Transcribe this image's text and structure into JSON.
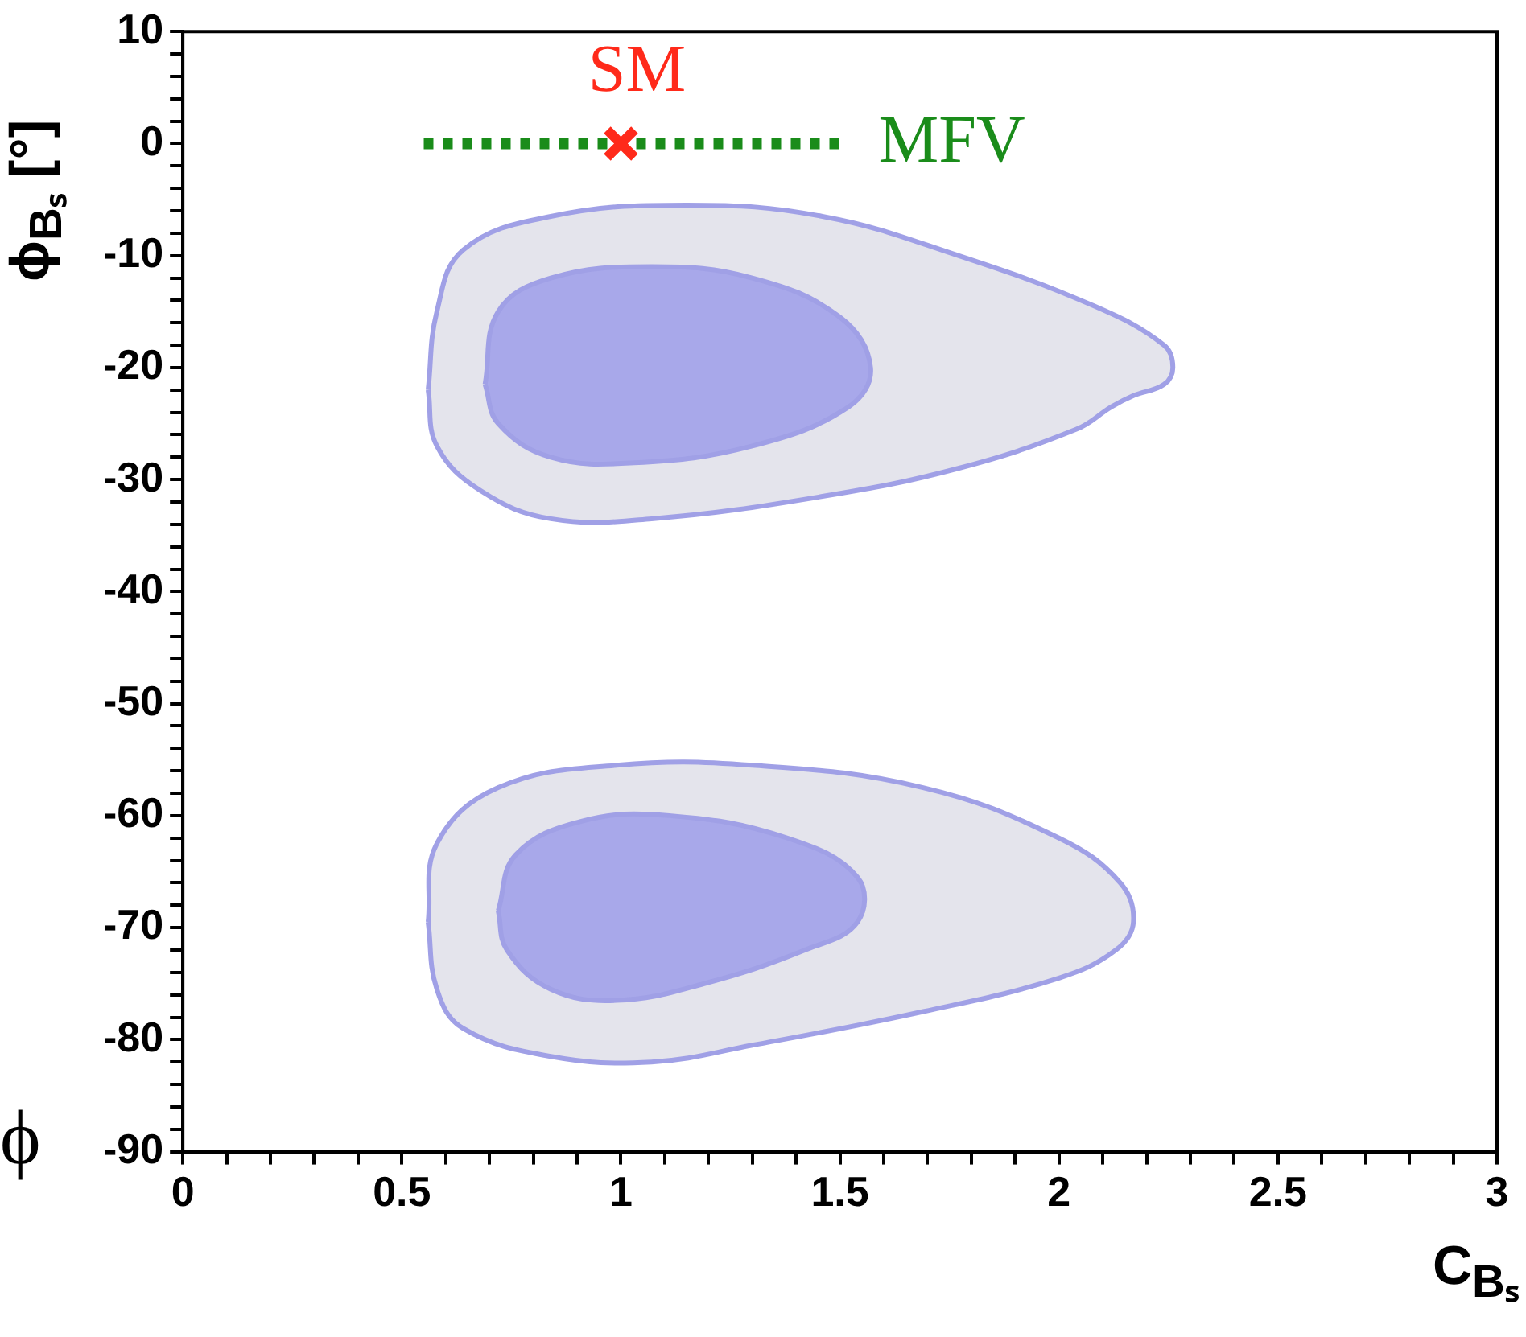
{
  "chart_data": {
    "type": "area",
    "xlabel": "C$_{Bₛ}$",
    "ylabel": "ϕ$_{Bₛ}$ [°]",
    "annotations": [
      "ϕ"
    ],
    "xlim": [
      0,
      3
    ],
    "ylim": [
      -90,
      10
    ],
    "xticks": [
      0,
      {
        "value": 0.1,
        "label": null
      },
      {
        "value": 0.2,
        "label": null
      },
      {
        "value": 0.3,
        "label": null
      },
      {
        "value": 0.4,
        "label": null
      },
      0.5,
      {
        "value": 0.6,
        "label": null
      },
      {
        "value": 0.7,
        "label": null
      },
      {
        "value": 0.8,
        "label": null
      },
      {
        "value": 0.9,
        "label": null
      },
      1,
      {
        "value": 1.1,
        "label": null
      },
      {
        "value": 1.2,
        "label": null
      },
      {
        "value": 1.3,
        "label": null
      },
      {
        "value": 1.4,
        "label": null
      },
      1.5,
      {
        "value": 1.6,
        "label": null
      },
      {
        "value": 1.7,
        "label": null
      },
      {
        "value": 1.8,
        "label": null
      },
      {
        "value": 1.9,
        "label": null
      },
      2,
      {
        "value": 2.1,
        "label": null
      },
      {
        "value": 2.2,
        "label": null
      },
      {
        "value": 2.3,
        "label": null
      },
      {
        "value": 2.4,
        "label": null
      },
      2.5,
      {
        "value": 2.6,
        "label": null
      },
      {
        "value": 2.7,
        "label": null
      },
      {
        "value": 2.8,
        "label": null
      },
      {
        "value": 2.9,
        "label": null
      },
      3
    ],
    "yticks": [
      -90,
      {
        "value": -88,
        "label": null
      },
      {
        "value": -86,
        "label": null
      },
      {
        "value": -84,
        "label": null
      },
      {
        "value": -82,
        "label": null
      },
      -80,
      {
        "value": -78,
        "label": null
      },
      {
        "value": -76,
        "label": null
      },
      {
        "value": -74,
        "label": null
      },
      {
        "value": -72,
        "label": null
      },
      -70,
      {
        "value": -68,
        "label": null
      },
      {
        "value": -66,
        "label": null
      },
      {
        "value": -64,
        "label": null
      },
      {
        "value": -62,
        "label": null
      },
      -60,
      {
        "value": -58,
        "label": null
      },
      {
        "value": -56,
        "label": null
      },
      {
        "value": -54,
        "label": null
      },
      {
        "value": -52,
        "label": null
      },
      -50,
      {
        "value": -48,
        "label": null
      },
      {
        "value": -46,
        "label": null
      },
      {
        "value": -44,
        "label": null
      },
      {
        "value": -42,
        "label": null
      },
      -40,
      {
        "value": -38,
        "label": null
      },
      {
        "value": -36,
        "label": null
      },
      {
        "value": -34,
        "label": null
      },
      {
        "value": -32,
        "label": null
      },
      -30,
      {
        "value": -28,
        "label": null
      },
      {
        "value": -26,
        "label": null
      },
      {
        "value": -24,
        "label": null
      },
      {
        "value": -22,
        "label": null
      },
      -20,
      {
        "value": -18,
        "label": null
      },
      {
        "value": -16,
        "label": null
      },
      {
        "value": -14,
        "label": null
      },
      {
        "value": -12,
        "label": null
      },
      -10,
      {
        "value": -8,
        "label": null
      },
      {
        "value": -6,
        "label": null
      },
      {
        "value": -4,
        "label": null
      },
      {
        "value": -2,
        "label": null
      },
      0,
      {
        "value": 2,
        "label": null
      },
      {
        "value": 4,
        "label": null
      },
      {
        "value": 6,
        "label": null
      },
      {
        "value": 8,
        "label": null
      },
      10
    ],
    "grid": false,
    "legend": false,
    "series": [
      {
        "color": "#e4e4ec",
        "x": [
          0.56,
          0.58,
          0.64,
          0.84,
          1.15,
          1.46,
          1.77,
          2.08,
          2.24,
          2.26,
          2.24,
          2.17,
          2.12,
          2.04,
          1.77,
          1.46,
          1.07,
          0.84,
          0.68,
          0.58,
          0.56
        ],
        "values": [
          -22,
          -15,
          -9.5,
          -6.5,
          -5.5,
          -6.5,
          -10,
          -14.5,
          -18,
          -20,
          -21.5,
          -22.5,
          -23.5,
          -25.5,
          -29,
          -31.5,
          -33.5,
          -33.5,
          -31,
          -27,
          -22
        ]
      },
      {
        "color": "#a8a8ea",
        "x": [
          0.69,
          0.72,
          0.84,
          1.07,
          1.3,
          1.5,
          1.57,
          1.52,
          1.3,
          1.03,
          0.84,
          0.72,
          0.69
        ],
        "values": [
          -21.5,
          -15,
          -12,
          -11,
          -12,
          -15.5,
          -20,
          -23.5,
          -27,
          -28.5,
          -28,
          -25,
          -21.5
        ]
      },
      {
        "color": "#e4e4ec",
        "x": [
          0.56,
          0.58,
          0.72,
          0.99,
          1.3,
          1.69,
          2,
          2.14,
          2.17,
          2.13,
          2,
          1.69,
          1.3,
          1.07,
          0.84,
          0.64,
          0.58,
          0.56
        ],
        "values": [
          -69.5,
          -62.5,
          -57.5,
          -55.5,
          -55.5,
          -57.5,
          -62,
          -66,
          -69.5,
          -72,
          -74.5,
          -77.5,
          -80.5,
          -82,
          -81.5,
          -79,
          -75.5,
          -69.5
        ]
      },
      {
        "color": "#a8a8ea",
        "x": [
          0.72,
          0.76,
          0.91,
          1.11,
          1.38,
          1.54,
          1.54,
          1.42,
          1.19,
          0.99,
          0.84,
          0.74,
          0.72
        ],
        "values": [
          -68.5,
          -63.5,
          -60.5,
          -60,
          -62,
          -65.5,
          -69.5,
          -72,
          -75,
          -76.5,
          -75.5,
          -72,
          -68.5
        ]
      },
      {
        "type": "line",
        "name": "MFV",
        "color": "#1a8c1a",
        "line_style": "dotted",
        "marker": "none",
        "x": [
          0.55,
          1.5
        ],
        "values": [
          0,
          0
        ]
      },
      {
        "type": "scatter",
        "name": "SM",
        "color": "#ff2a1a",
        "marker": "cross",
        "x": [
          1
        ],
        "values": [
          0
        ]
      }
    ]
  }
}
